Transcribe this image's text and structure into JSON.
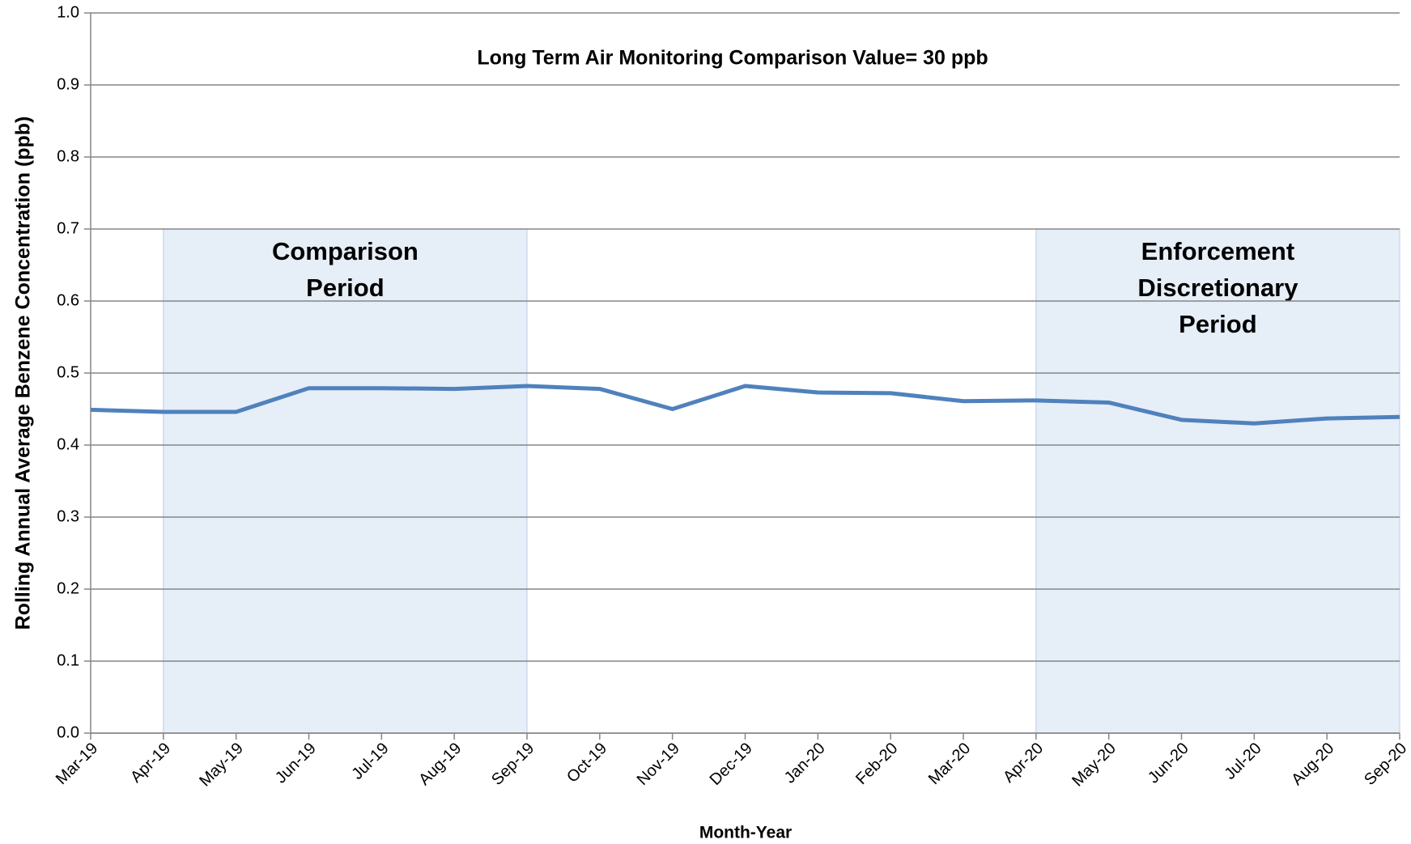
{
  "chart_data": {
    "type": "line",
    "annotation": "Long Term Air Monitoring Comparison  Value= 30 ppb",
    "x_label": "Month-Year",
    "y_label": "Rolling Annual  Average Benzene Concentration (ppb)",
    "categories": [
      "Mar-19",
      "Apr-19",
      "May-19",
      "Jun-19",
      "Jul-19",
      "Aug-19",
      "Sep-19",
      "Oct-19",
      "Nov-19",
      "Dec-19",
      "Jan-20",
      "Feb-20",
      "Mar-20",
      "Apr-20",
      "May-20",
      "Jun-20",
      "Jul-20",
      "Aug-20",
      "Sep-20"
    ],
    "series": [
      {
        "color": "#4f81bd",
        "values": [
          0.449,
          0.446,
          0.446,
          0.479,
          0.479,
          0.478,
          0.482,
          0.478,
          0.45,
          0.482,
          0.473,
          0.472,
          0.461,
          0.462,
          0.459,
          0.435,
          0.43,
          0.437,
          0.439
        ]
      }
    ],
    "ylim": [
      0,
      1
    ],
    "yticks": [
      {
        "value": 0,
        "label": "0.0"
      },
      {
        "value": 0.1,
        "label": "0.1"
      },
      {
        "value": 0.2,
        "label": "0.2"
      },
      {
        "value": 0.3,
        "label": "0.3"
      },
      {
        "value": 0.4,
        "label": "0.4"
      },
      {
        "value": 0.5,
        "label": "0.5"
      },
      {
        "value": 0.6,
        "label": "0.6"
      },
      {
        "value": 0.7,
        "label": "0.7"
      },
      {
        "value": 0.8,
        "label": "0.8"
      },
      {
        "value": 0.9,
        "label": "0.9"
      },
      {
        "value": 1,
        "label": "1.0"
      }
    ],
    "grid": true,
    "regions": [
      {
        "start": "Apr-19",
        "end": "Sep-19",
        "top": 0.7,
        "color": "#e6eef8",
        "label": [
          "Comparison",
          "Period"
        ]
      },
      {
        "start": "Apr-20",
        "end": "Sep-20",
        "top": 0.7,
        "color": "#e6eef8",
        "label": [
          "Enforcement",
          "Discretionary",
          "Period"
        ]
      }
    ]
  }
}
